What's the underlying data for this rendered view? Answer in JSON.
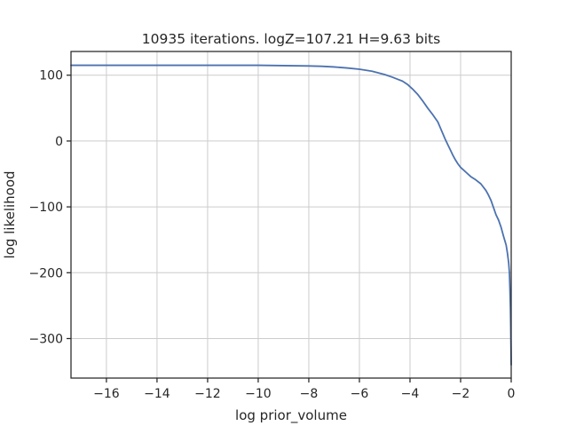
{
  "chart_data": {
    "type": "line",
    "title": "10935 iterations. logZ=107.21 H=9.63 bits",
    "xlabel": "log prior_volume",
    "ylabel": "log likelihood",
    "xlim": [
      -17.4,
      0
    ],
    "ylim": [
      -360,
      136
    ],
    "xticks": [
      -16,
      -14,
      -12,
      -10,
      -8,
      -6,
      -4,
      -2,
      0
    ],
    "yticks": [
      100,
      0,
      -100,
      -200,
      -300
    ],
    "xtick_labels": [
      "−16",
      "−14",
      "−12",
      "−10",
      "−8",
      "−6",
      "−4",
      "−2",
      "0"
    ],
    "ytick_labels": [
      "100",
      "0",
      "−100",
      "−200",
      "−300"
    ],
    "grid": true,
    "series": [
      {
        "color": "#4c72b0",
        "x": [
          -17.4,
          -16,
          -14,
          -12,
          -10,
          -9,
          -8,
          -7.5,
          -7,
          -6.5,
          -6,
          -5.5,
          -5,
          -4.7,
          -4.5,
          -4.3,
          -4.1,
          -3.9,
          -3.7,
          -3.5,
          -3.3,
          -3.1,
          -2.9,
          -2.8,
          -2.7,
          -2.6,
          -2.5,
          -2.4,
          -2.3,
          -2.2,
          -2.1,
          -2.0,
          -1.8,
          -1.6,
          -1.4,
          -1.2,
          -1.0,
          -0.9,
          -0.8,
          -0.7,
          -0.6,
          -0.5,
          -0.4,
          -0.3,
          -0.2,
          -0.15,
          -0.1,
          -0.07,
          -0.05,
          -0.03,
          -0.02,
          -0.01,
          0
        ],
        "y": [
          115,
          115,
          115,
          115,
          115,
          114.5,
          114,
          113.5,
          112.5,
          111,
          109,
          106,
          101,
          97,
          94,
          91,
          86,
          79,
          71,
          61,
          50,
          40,
          29,
          20,
          11,
          2,
          -6,
          -14,
          -22,
          -29,
          -35,
          -40,
          -47,
          -54,
          -59,
          -65,
          -75,
          -82,
          -90,
          -101,
          -112,
          -120,
          -131,
          -145,
          -158,
          -170,
          -185,
          -200,
          -225,
          -255,
          -280,
          -310,
          -340
        ]
      }
    ]
  }
}
